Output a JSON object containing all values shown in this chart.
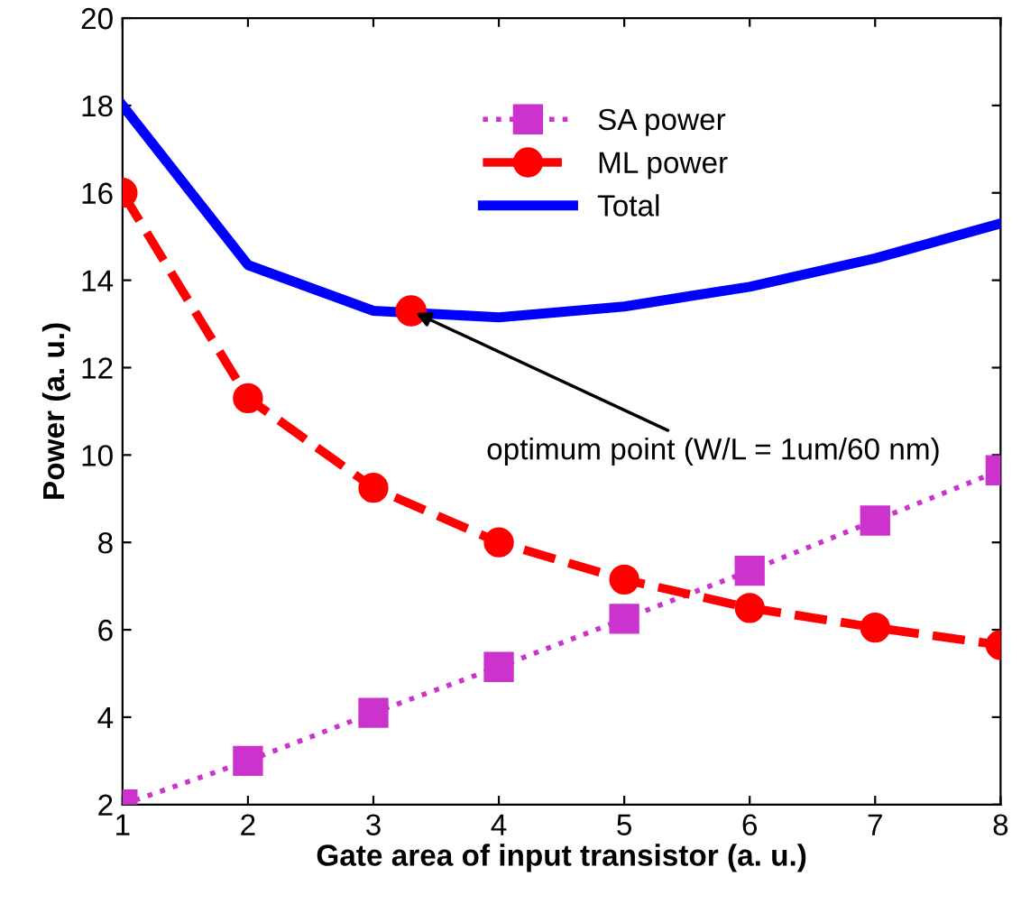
{
  "chart_data": {
    "type": "line",
    "xlabel": "Gate area of input transistor (a. u.)",
    "ylabel": "Power (a. u.)",
    "x": [
      1,
      2,
      3,
      4,
      5,
      6,
      7,
      8
    ],
    "series": [
      {
        "name": "SA power",
        "color": "#cc33cc",
        "values": [
          2.0,
          3.0,
          4.1,
          5.15,
          6.25,
          7.35,
          8.5,
          9.65
        ],
        "marker": "square",
        "line_style": "dotted"
      },
      {
        "name": "ML power",
        "color": "#ff0000",
        "values": [
          16.0,
          11.3,
          9.25,
          8.0,
          7.15,
          6.5,
          6.05,
          5.65
        ],
        "marker": "circle",
        "line_style": "dashed"
      },
      {
        "name": "Total",
        "color": "#0000ff",
        "values": [
          18.0,
          14.35,
          13.3,
          13.15,
          13.4,
          13.85,
          14.5,
          15.3
        ],
        "marker": "none",
        "line_style": "solid"
      },
      {
        "type": "scatter",
        "color": "#ff0000",
        "x": [
          3.3
        ],
        "values": [
          13.3
        ],
        "marker": "circle"
      }
    ],
    "annotations": [
      {
        "text": "optimum point (W/L = 1um/60 nm)",
        "x": 3.3,
        "y": 13.3
      }
    ],
    "xlim": [
      1,
      8
    ],
    "xticks": [
      1,
      2,
      3,
      4,
      5,
      6,
      7,
      8
    ],
    "ylim": [
      2,
      20
    ],
    "yticks": [
      2,
      4,
      6,
      8,
      10,
      12,
      14,
      16,
      18,
      20
    ],
    "grid": false,
    "legend": "top"
  }
}
